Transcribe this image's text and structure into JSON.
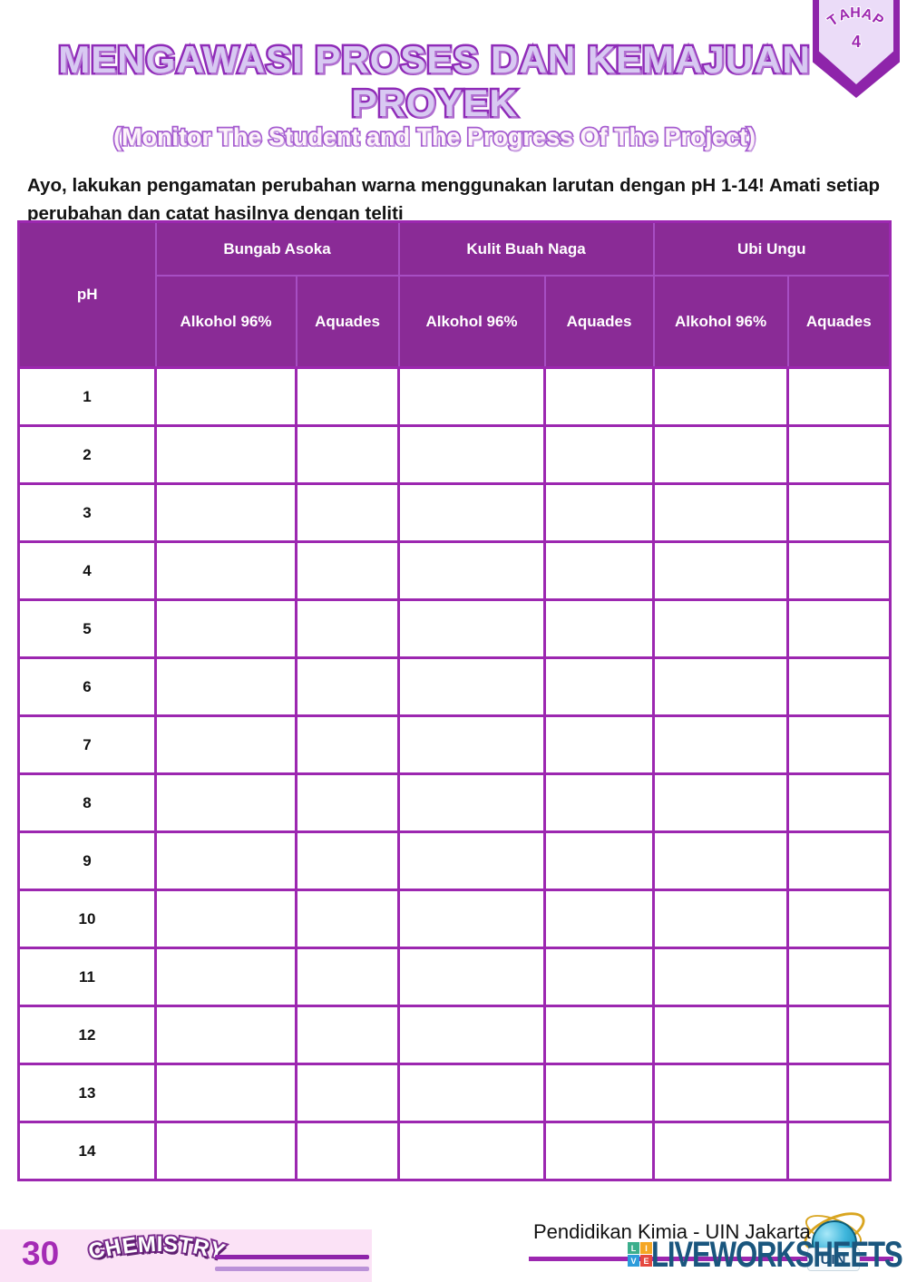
{
  "badge": {
    "stage_label": "TAHAP",
    "stage_number": "4"
  },
  "title": {
    "main": "MENGAWASI PROSES DAN KEMAJUAN PROYEK",
    "subtitle": "(Monitor The Student and The Progress Of The Project)"
  },
  "instruction": "Ayo, lakukan pengamatan perubahan warna menggunakan larutan dengan pH 1-14! Amati setiap perubahan dan catat hasilnya dengan teliti",
  "table": {
    "ph_header": "pH",
    "groups": [
      {
        "label": "Bungab Asoka"
      },
      {
        "label": "Kulit Buah Naga"
      },
      {
        "label": "Ubi Ungu"
      }
    ],
    "subheaders": [
      "Alkohol 96%",
      "Aquades",
      "Alkohol 96%",
      "Aquades",
      "Alkohol 96%",
      "Aquades"
    ],
    "ph_values": [
      "1",
      "2",
      "3",
      "4",
      "5",
      "6",
      "7",
      "8",
      "9",
      "10",
      "11",
      "12",
      "13",
      "14"
    ],
    "answer_columns": 6
  },
  "footer": {
    "page_number": "30",
    "subject": "CHEMISTRY",
    "credit": "Pendidikan Kimia - UIN Jakarta",
    "liveworksheets": {
      "wordmark": "LIVEWORKSHEETS",
      "uin_text": "UIN",
      "blocks": [
        {
          "letter": "L",
          "color": "#3BAE8C"
        },
        {
          "letter": "I",
          "color": "#F5A623"
        },
        {
          "letter": "V",
          "color": "#2D9CDB"
        },
        {
          "letter": "E",
          "color": "#E5483F"
        }
      ]
    }
  },
  "colors": {
    "header_bg": "#8A2B96",
    "grid": "#9C27B0",
    "accent": "#8E24AA",
    "title_fill": "#D8C9F2",
    "pink_box": "#FBE2F6",
    "wordmark": "#1A567E"
  }
}
